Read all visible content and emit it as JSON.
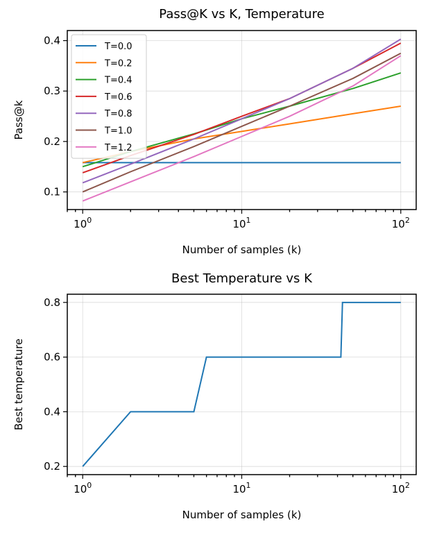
{
  "chart_data": [
    {
      "type": "line",
      "title": "Pass@K vs K, Temperature",
      "xlabel": "Number of samples (k)",
      "ylabel": "Pass@k",
      "xscale": "log",
      "xlim": [
        0.8,
        125
      ],
      "ylim": [
        0.065,
        0.42
      ],
      "xticks": [
        1,
        10,
        100
      ],
      "xtick_labels": [
        {
          "base": "10",
          "exp": "0"
        },
        {
          "base": "10",
          "exp": "1"
        },
        {
          "base": "10",
          "exp": "2"
        }
      ],
      "yticks": [
        0.1,
        0.2,
        0.3,
        0.4
      ],
      "ytick_labels": [
        "0.1",
        "0.2",
        "0.3",
        "0.4"
      ],
      "grid": true,
      "legend": "top-left",
      "series": [
        {
          "name": "T=0.0",
          "color": "#1f77b4",
          "x": [
            1,
            2,
            5,
            10,
            20,
            50,
            100
          ],
          "y": [
            0.158,
            0.158,
            0.158,
            0.158,
            0.158,
            0.158,
            0.158
          ]
        },
        {
          "name": "T=0.2",
          "color": "#ff7f0e",
          "x": [
            1,
            2,
            5,
            10,
            20,
            50,
            100
          ],
          "y": [
            0.158,
            0.18,
            0.205,
            0.22,
            0.235,
            0.255,
            0.27
          ]
        },
        {
          "name": "T=0.4",
          "color": "#2ca02c",
          "x": [
            1,
            2,
            5,
            10,
            20,
            50,
            100
          ],
          "y": [
            0.15,
            0.18,
            0.215,
            0.245,
            0.27,
            0.305,
            0.336
          ]
        },
        {
          "name": "T=0.6",
          "color": "#d62728",
          "x": [
            1,
            2,
            5,
            10,
            20,
            50,
            100
          ],
          "y": [
            0.138,
            0.172,
            0.214,
            0.25,
            0.285,
            0.345,
            0.395
          ]
        },
        {
          "name": "T=0.8",
          "color": "#9467bd",
          "x": [
            1,
            2,
            5,
            10,
            20,
            50,
            100
          ],
          "y": [
            0.118,
            0.155,
            0.205,
            0.245,
            0.285,
            0.345,
            0.403
          ]
        },
        {
          "name": "T=1.0",
          "color": "#8c564b",
          "x": [
            1,
            2,
            5,
            10,
            20,
            50,
            100
          ],
          "y": [
            0.1,
            0.14,
            0.19,
            0.23,
            0.27,
            0.325,
            0.375
          ]
        },
        {
          "name": "T=1.2",
          "color": "#e377c2",
          "x": [
            1,
            2,
            5,
            10,
            20,
            50,
            100
          ],
          "y": [
            0.082,
            0.12,
            0.17,
            0.21,
            0.25,
            0.31,
            0.37
          ]
        }
      ]
    },
    {
      "type": "line",
      "title": "Best Temperature vs K",
      "xlabel": "Number of samples (k)",
      "ylabel": "Best temperature",
      "xscale": "log",
      "xlim": [
        0.8,
        125
      ],
      "ylim": [
        0.17,
        0.83
      ],
      "xticks": [
        1,
        10,
        100
      ],
      "xtick_labels": [
        {
          "base": "10",
          "exp": "0"
        },
        {
          "base": "10",
          "exp": "1"
        },
        {
          "base": "10",
          "exp": "2"
        }
      ],
      "yticks": [
        0.2,
        0.4,
        0.6,
        0.8
      ],
      "ytick_labels": [
        "0.2",
        "0.4",
        "0.6",
        "0.8"
      ],
      "grid": true,
      "series": [
        {
          "color": "#1f77b4",
          "x": [
            1,
            2,
            3,
            4,
            5,
            6,
            10,
            20,
            42,
            43,
            100
          ],
          "y": [
            0.2,
            0.4,
            0.4,
            0.4,
            0.4,
            0.6,
            0.6,
            0.6,
            0.6,
            0.8,
            0.8
          ]
        }
      ]
    }
  ]
}
